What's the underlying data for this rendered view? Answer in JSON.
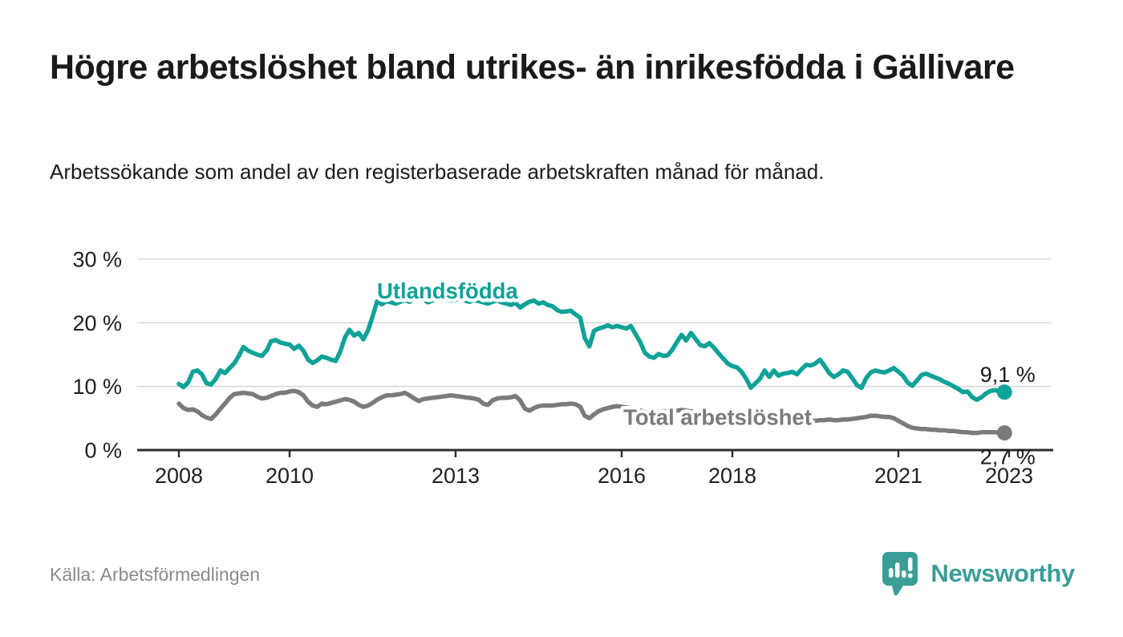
{
  "header": {
    "title": "Högre arbetslöshet bland utrikes- än inrikesfödda i Gällivare",
    "subtitle": "Arbetssökande som andel av den registerbaserade arbetskraften månad för månad."
  },
  "footer": {
    "source": "Källa: Arbetsförmedlingen",
    "brand": "Newsworthy"
  },
  "colors": {
    "foreign_born_line": "#0fa298",
    "total_line": "#7b7b7b",
    "value_label": "#1a1a1a",
    "axis": "#2d2d2d",
    "gridline": "#d8d8d8",
    "tick_text": "#202020",
    "brand_teal": "#3a9e97"
  },
  "chart_data": {
    "type": "line",
    "title": "Högre arbetslöshet bland utrikes- än inrikesfödda i Gällivare",
    "xlabel": "",
    "ylabel": "Arbetssökande som andel av den registerbaserade arbetskraften",
    "x_unit": "month",
    "x_start": "2008-01",
    "x_end": "2022-12",
    "ylim": [
      0,
      30
    ],
    "y_ticks": [
      {
        "value": 0,
        "label": "0 %"
      },
      {
        "value": 10,
        "label": "10 %"
      },
      {
        "value": 20,
        "label": "20 %"
      },
      {
        "value": 30,
        "label": "30 %"
      }
    ],
    "x_ticks": [
      {
        "year": 2008,
        "label": "2008"
      },
      {
        "year": 2010,
        "label": "2010"
      },
      {
        "year": 2013,
        "label": "2013"
      },
      {
        "year": 2016,
        "label": "2016"
      },
      {
        "year": 2018,
        "label": "2018"
      },
      {
        "year": 2021,
        "label": "2021"
      },
      {
        "year": 2023,
        "label": "2023"
      }
    ],
    "grid": "horizontal",
    "legend_position": "inline-labels",
    "series": [
      {
        "name": "Utlandsfödda",
        "color": "#0fa298",
        "end_label": "9,1 %",
        "label_anchor": {
          "year": 2011.58,
          "pct": 23.8
        },
        "values": [
          10.4,
          9.9,
          10.6,
          12.3,
          12.5,
          11.9,
          10.5,
          10.3,
          11.2,
          12.5,
          12.1,
          12.9,
          13.6,
          14.8,
          16.2,
          15.6,
          15.3,
          15.0,
          14.8,
          15.6,
          17.1,
          17.3,
          16.9,
          16.7,
          16.6,
          15.9,
          16.4,
          15.6,
          14.2,
          13.7,
          14.1,
          14.7,
          14.5,
          14.2,
          14.0,
          15.5,
          17.7,
          18.9,
          18.0,
          18.4,
          17.4,
          18.8,
          21.0,
          23.4,
          22.9,
          23.4,
          23.2,
          23.0,
          23.3,
          23.6,
          23.3,
          23.8,
          24.1,
          23.7,
          23.2,
          23.5,
          23.8,
          24.0,
          23.7,
          23.5,
          23.6,
          23.8,
          23.5,
          23.3,
          23.6,
          23.4,
          23.2,
          23.0,
          23.3,
          23.5,
          23.2,
          23.0,
          22.8,
          23.1,
          22.4,
          22.9,
          23.3,
          23.5,
          23.0,
          23.2,
          22.8,
          22.6,
          22.0,
          21.7,
          21.8,
          21.9,
          21.3,
          20.8,
          17.6,
          16.3,
          18.7,
          19.1,
          19.3,
          19.6,
          19.3,
          19.5,
          19.3,
          19.1,
          19.5,
          18.2,
          17.0,
          15.3,
          14.7,
          14.5,
          15.1,
          14.8,
          14.9,
          15.8,
          17.0,
          18.1,
          17.2,
          18.4,
          17.5,
          16.5,
          16.3,
          16.8,
          16.1,
          15.2,
          14.4,
          13.6,
          13.2,
          13.0,
          12.3,
          11.2,
          9.8,
          10.5,
          11.2,
          12.5,
          11.5,
          12.5,
          11.7,
          12.0,
          12.1,
          12.3,
          11.9,
          12.7,
          13.4,
          13.3,
          13.6,
          14.2,
          13.2,
          12.1,
          11.5,
          11.9,
          12.5,
          12.3,
          11.3,
          10.2,
          9.8,
          11.3,
          12.2,
          12.5,
          12.3,
          12.2,
          12.5,
          12.9,
          12.3,
          11.7,
          10.6,
          10.1,
          10.9,
          11.8,
          12.0,
          11.7,
          11.4,
          11.1,
          10.7,
          10.4,
          10.0,
          9.6,
          9.1,
          9.2,
          8.3,
          7.9,
          8.3,
          8.9,
          9.3,
          9.4,
          9.2,
          9.1
        ]
      },
      {
        "name": "Total arbetslöshet",
        "color": "#7b7b7b",
        "end_label": "2,7 %",
        "label_anchor": {
          "year": 2016.03,
          "pct": 4.0
        },
        "values": [
          7.3,
          6.6,
          6.3,
          6.4,
          6.1,
          5.5,
          5.1,
          4.9,
          5.6,
          6.5,
          7.3,
          8.2,
          8.8,
          8.9,
          9.0,
          8.9,
          8.8,
          8.4,
          8.1,
          8.2,
          8.5,
          8.8,
          9.0,
          9.0,
          9.2,
          9.3,
          9.1,
          8.6,
          7.6,
          7.0,
          6.8,
          7.3,
          7.2,
          7.4,
          7.6,
          7.8,
          8.0,
          7.9,
          7.6,
          7.1,
          6.8,
          7.0,
          7.4,
          7.9,
          8.3,
          8.6,
          8.6,
          8.7,
          8.8,
          9.0,
          8.6,
          8.1,
          7.7,
          8.0,
          8.1,
          8.2,
          8.3,
          8.4,
          8.5,
          8.6,
          8.5,
          8.4,
          8.3,
          8.2,
          8.1,
          7.9,
          7.3,
          7.1,
          7.8,
          8.1,
          8.2,
          8.2,
          8.3,
          8.5,
          7.8,
          6.5,
          6.2,
          6.6,
          6.9,
          7.0,
          7.0,
          7.0,
          7.1,
          7.2,
          7.2,
          7.3,
          7.2,
          6.8,
          5.4,
          5.0,
          5.6,
          6.1,
          6.4,
          6.6,
          6.8,
          6.9,
          6.8,
          6.7,
          6.6,
          6.4,
          6.2,
          6.0,
          5.9,
          5.9,
          6.0,
          6.1,
          6.1,
          6.2,
          6.2,
          6.3,
          6.2,
          6.1,
          6.0,
          5.9,
          5.8,
          5.8,
          5.7,
          5.6,
          5.5,
          5.4,
          5.4,
          5.3,
          5.2,
          5.0,
          4.9,
          4.8,
          4.8,
          4.9,
          4.9,
          5.0,
          5.0,
          5.0,
          5.0,
          4.9,
          4.8,
          4.7,
          4.6,
          4.6,
          4.6,
          4.7,
          4.7,
          4.8,
          4.7,
          4.7,
          4.8,
          4.8,
          4.9,
          5.0,
          5.1,
          5.2,
          5.4,
          5.4,
          5.3,
          5.2,
          5.2,
          5.0,
          4.6,
          4.2,
          3.8,
          3.5,
          3.4,
          3.3,
          3.3,
          3.2,
          3.2,
          3.1,
          3.1,
          3.0,
          3.0,
          2.9,
          2.8,
          2.8,
          2.7,
          2.7,
          2.8,
          2.8,
          2.8,
          2.8,
          2.7,
          2.7
        ]
      }
    ]
  }
}
